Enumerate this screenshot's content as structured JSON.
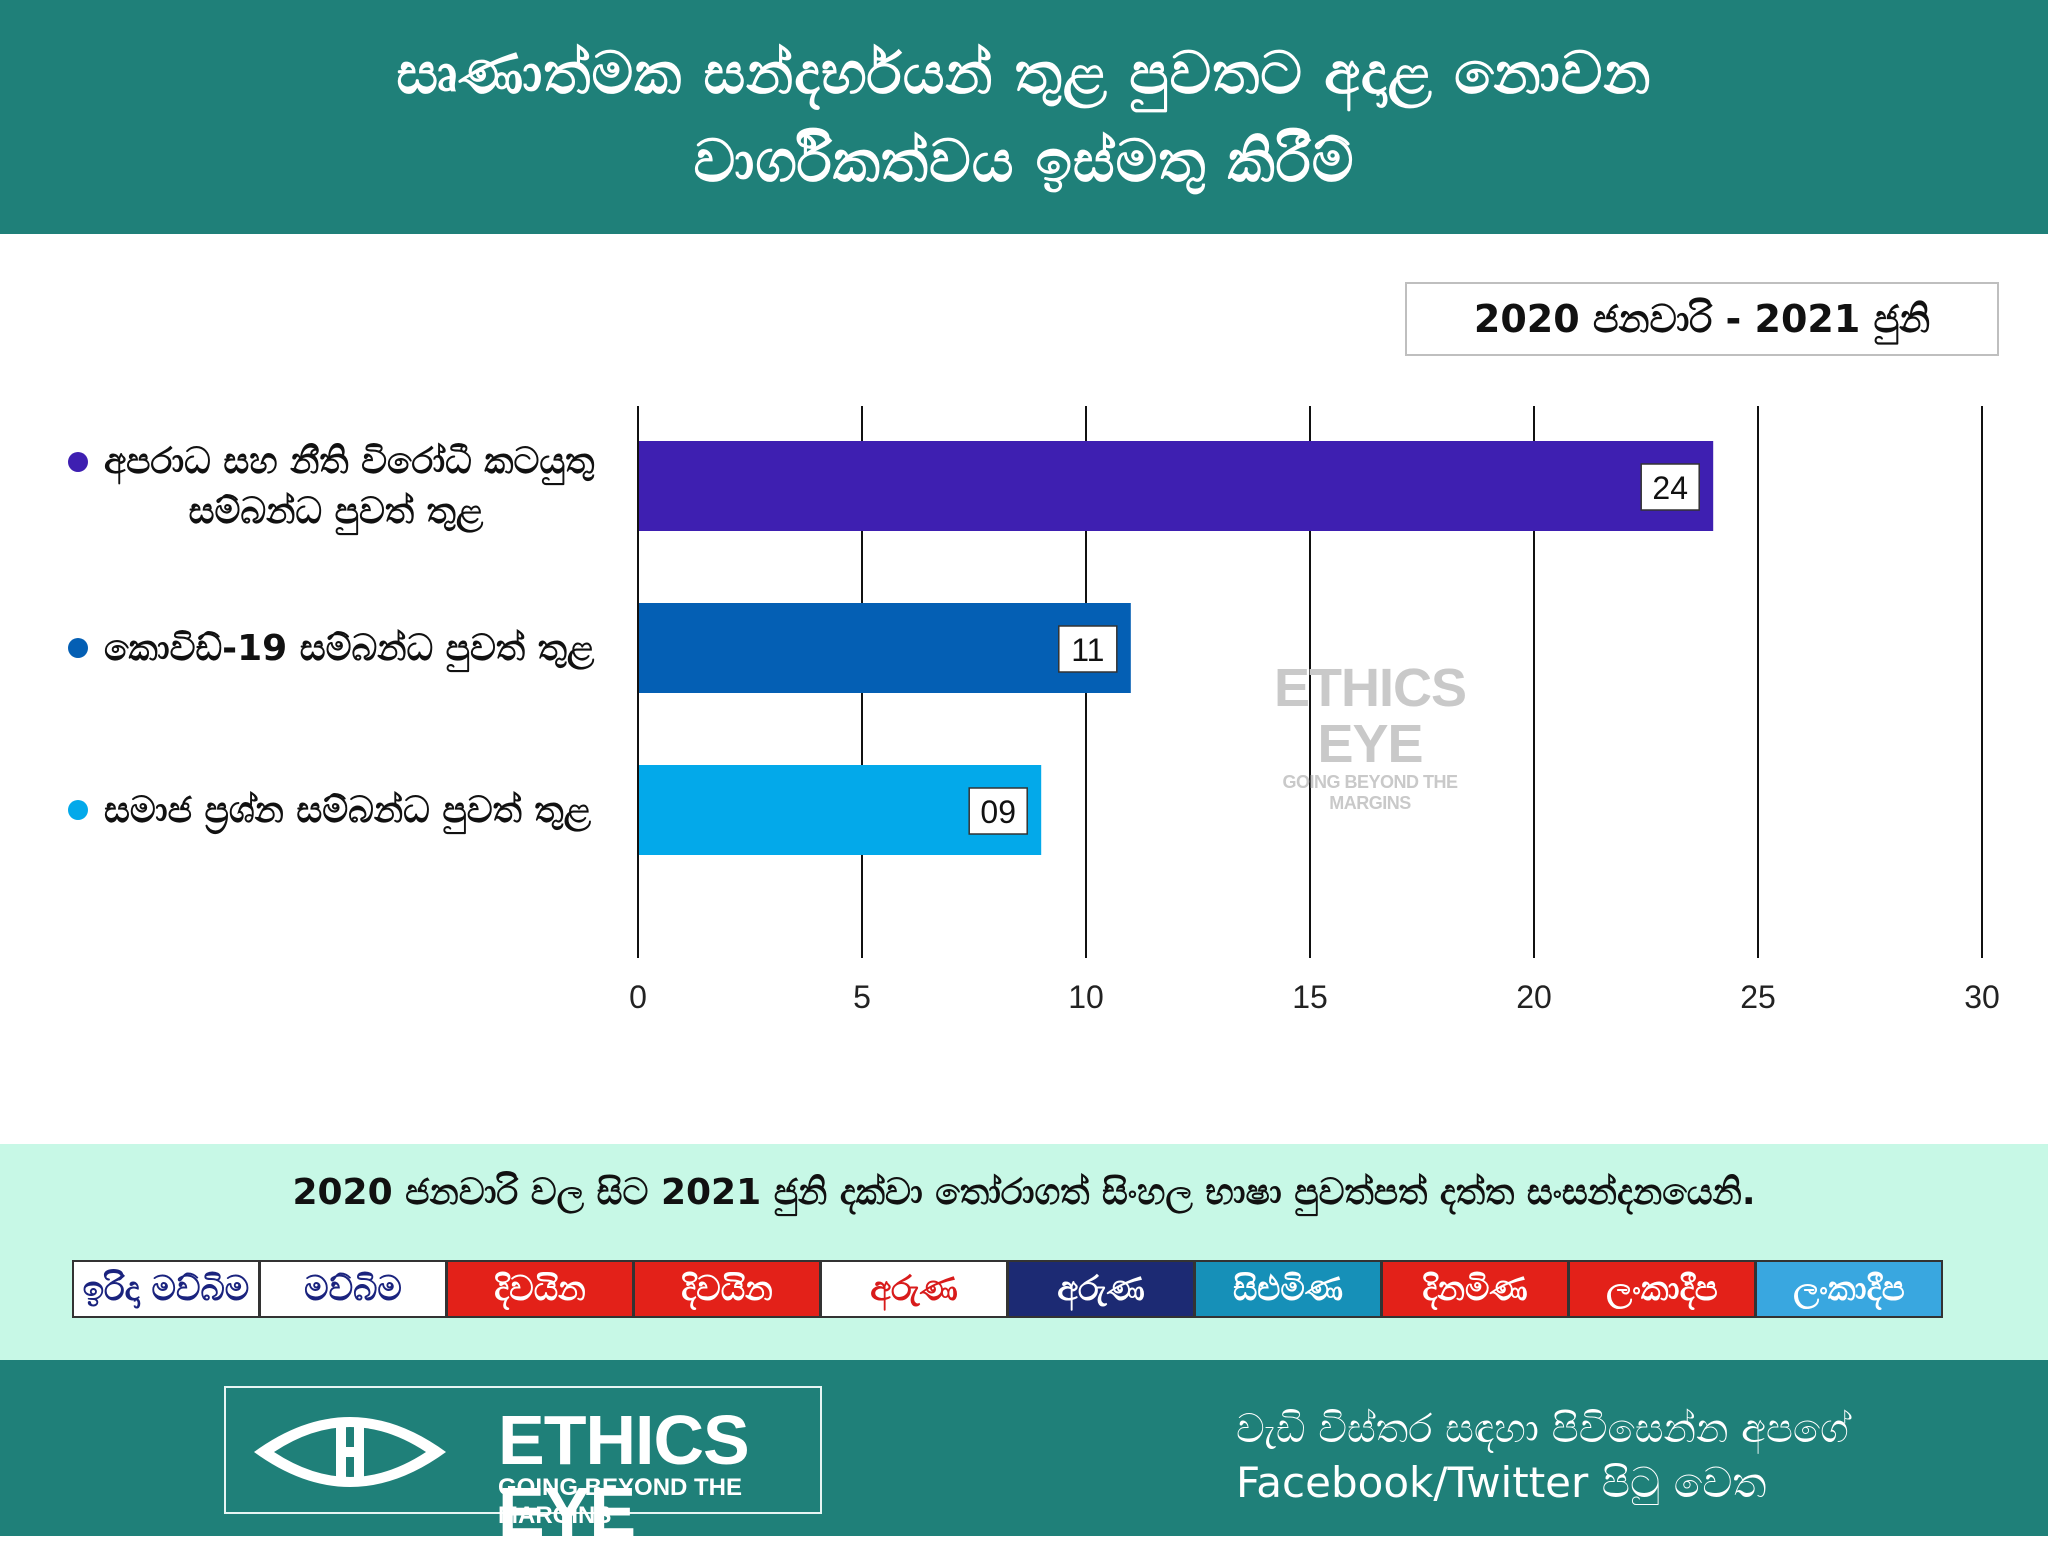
{
  "title_line1": "සෘණාත්මක සන්දර්භයන් තුළ පුවතට අදාළ නොවන",
  "title_line2": "වාර්ගිකත්වය ඉස්මතු කිරීම්",
  "period": "2020 ජනවාරි  -  2021 ජුනි",
  "watermark": {
    "name": "ETHICS EYE",
    "tagline": "GOING BEYOND THE MARGINS"
  },
  "chart_data": {
    "type": "bar",
    "orientation": "horizontal",
    "categories": [
      "අපරාධ සහ නීති විරෝධී කටයුතු සම්බන්ධ පුවත් තුළ",
      "කොවිඩ්-19 සම්බන්ධ පුවත් තුළ",
      "සමාජ ප්‍රශ්න සම්බන්ධ පුවත් තුළ"
    ],
    "category_lines": [
      [
        "අපරාධ සහ නීති විරෝධී කටයුතු",
        "සම්බන්ධ පුවත් තුළ"
      ],
      [
        "කොවිඩ්-19 සම්බන්ධ පුවත් තුළ"
      ],
      [
        "සමාජ ප්‍රශ්න සම්බන්ධ පුවත් තුළ"
      ]
    ],
    "values": [
      24,
      11,
      9
    ],
    "data_labels": [
      "24",
      "11",
      "09"
    ],
    "colors": [
      "#3e1fb1",
      "#045fb4",
      "#03a9ea"
    ],
    "xlim": [
      0,
      30
    ],
    "xticks": [
      0,
      5,
      10,
      15,
      20,
      25,
      30
    ],
    "grid": "vertical",
    "title": "",
    "xlabel": "",
    "ylabel": ""
  },
  "source_note": "2020 ජනවාරි වල සිට 2021 ජුනි දක්වා තෝරාගත් සිංහල භාෂා පුවත්පත් දත්ත සංසන්දනයෙනි.",
  "newspaper_logos": [
    {
      "name": "irida-mawbima",
      "text": "ඉරිදා මව්බිම",
      "bg": "#ffffff",
      "fg": "#1a237e"
    },
    {
      "name": "mawbima",
      "text": "මව්බිම",
      "bg": "#ffffff",
      "fg": "#1a237e"
    },
    {
      "name": "irida-divaina",
      "text": "දිවයින",
      "bg": "#e32119",
      "fg": "#ffffff"
    },
    {
      "name": "divaina",
      "text": "දිවයින",
      "bg": "#e32119",
      "fg": "#ffffff"
    },
    {
      "name": "aruna-weekend",
      "text": "අරුණ",
      "bg": "#ffffff",
      "fg": "#d81b1b"
    },
    {
      "name": "aruna",
      "text": "අරුණ",
      "bg": "#1c2a73",
      "fg": "#ffffff"
    },
    {
      "name": "silumina",
      "text": "සිළුමිණ",
      "bg": "#1690b8",
      "fg": "#ffffff"
    },
    {
      "name": "dinamina",
      "text": "දිනමිණ",
      "bg": "#e32119",
      "fg": "#ffffff"
    },
    {
      "name": "irida-lankadeepa",
      "text": "ලංකාදීප",
      "bg": "#e32119",
      "fg": "#ffffff"
    },
    {
      "name": "lankadeepa",
      "text": "ලංකාදීප",
      "bg": "#39a7e0",
      "fg": "#ffffff"
    }
  ],
  "footer": {
    "brand_name": "ETHICS EYE",
    "brand_tagline": "GOING BEYOND THE MARGINS",
    "more_info_line1": "වැඩි විස්තර සඳහා පිවිසෙන්න අපගේ",
    "more_info_line2": "Facebook/Twitter  පිටු වෙත"
  },
  "colors": {
    "header_bg": "#1f8079",
    "strip_bg": "#c7f8e6"
  }
}
